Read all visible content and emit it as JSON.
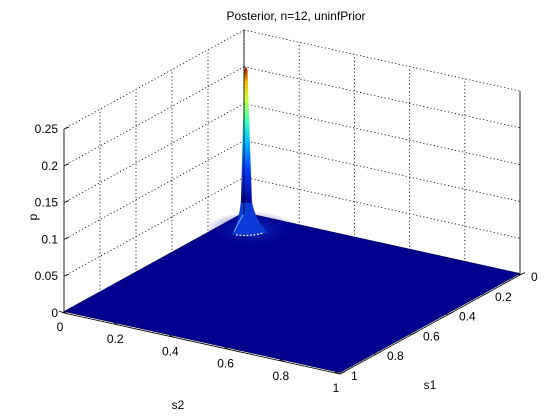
{
  "chart_data": {
    "type": "surface",
    "title": "Posterior, n=12, uninfPrior",
    "xlabel": "s1",
    "ylabel": "s2",
    "zlabel": "p",
    "xlim": [
      0,
      1
    ],
    "ylim": [
      0,
      1
    ],
    "zlim": [
      0,
      0.25
    ],
    "xticks": [
      "0",
      "0.2",
      "0.4",
      "0.6",
      "0.8",
      "1"
    ],
    "yticks": [
      "0",
      "0.2",
      "0.4",
      "0.6",
      "0.8",
      "1"
    ],
    "zticks": [
      "0",
      "0.05",
      "0.1",
      "0.15",
      "0.2",
      "0.25"
    ],
    "grid": true,
    "colormap": "jet",
    "surface_color": "#00008f",
    "peak": {
      "s1": 0.02,
      "s2": 0.02,
      "p": 0.205
    }
  }
}
